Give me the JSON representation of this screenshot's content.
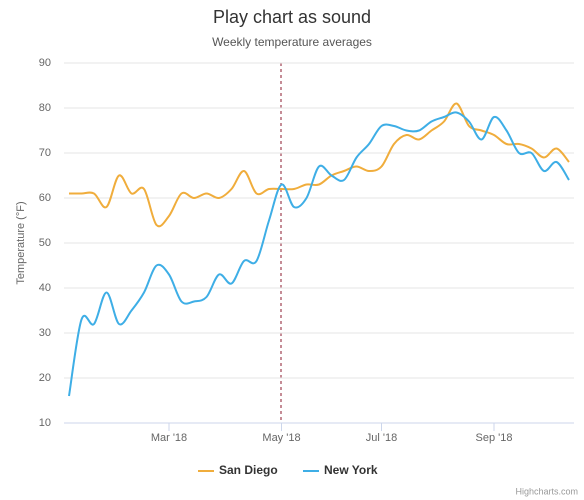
{
  "chart_data": {
    "type": "line",
    "title": "Play chart as sound",
    "subtitle": "Weekly temperature averages",
    "y_axis_label": "Temperature (°F)",
    "categories": [
      null,
      null,
      null,
      null,
      null,
      null,
      null,
      null,
      "Mar '18",
      null,
      null,
      null,
      null,
      null,
      null,
      null,
      null,
      "May '18",
      null,
      null,
      null,
      null,
      null,
      null,
      null,
      "Jul '18",
      null,
      null,
      null,
      null,
      null,
      null,
      null,
      null,
      "Sep '18",
      null,
      null,
      null,
      null,
      null,
      null
    ],
    "series": [
      {
        "name": "San Diego",
        "color": "#f0ad3c",
        "values": [
          61,
          61,
          61,
          58,
          65,
          61,
          62,
          54,
          56,
          61,
          60,
          61,
          60,
          62,
          66,
          61,
          62,
          62,
          62,
          63,
          63,
          65,
          66,
          67,
          66,
          67,
          72,
          74,
          73,
          75,
          77,
          81,
          76,
          75,
          74,
          72,
          72,
          71,
          69,
          71,
          68
        ]
      },
      {
        "name": "New York",
        "color": "#3eaee6",
        "values": [
          16,
          33,
          32,
          39,
          32,
          35,
          39,
          45,
          43,
          37,
          37,
          38,
          43,
          41,
          46,
          46,
          55,
          63,
          58,
          60,
          67,
          65,
          64,
          69,
          72,
          76,
          76,
          75,
          75,
          77,
          78,
          79,
          77,
          73,
          78,
          75,
          70,
          70,
          66,
          68,
          64
        ]
      }
    ],
    "ylim": [
      10,
      90
    ],
    "yticks": [
      10,
      20,
      30,
      40,
      50,
      60,
      70,
      80,
      90
    ],
    "grid": true,
    "legend": "bottom",
    "credits": "Highcharts.com"
  }
}
